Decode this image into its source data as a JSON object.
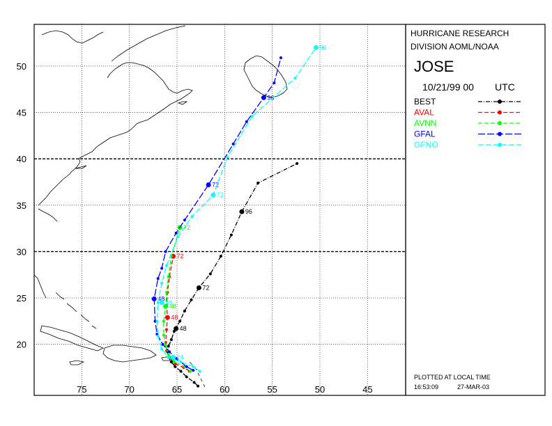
{
  "header": {
    "org_line1": "HURRICANE RESEARCH",
    "org_line2": "DIVISION AOML/NOAA",
    "storm_name": "JOSE",
    "datetime": "10/21/99 00",
    "timezone": "UTC"
  },
  "footer": {
    "note": "PLOTTED AT LOCAL TIME",
    "time": "16:53:09",
    "date": "27-MAR-03"
  },
  "chart_data": {
    "type": "line",
    "title": "JOSE",
    "xlabel": "",
    "ylabel": "",
    "xlim": [
      80,
      41
    ],
    "ylim": [
      14.5,
      54.5
    ],
    "x_ticks": [
      75,
      70,
      65,
      60,
      55,
      50,
      45
    ],
    "y_ticks": [
      20,
      25,
      30,
      35,
      40,
      45,
      50
    ],
    "grid": true,
    "legend_position": "right",
    "series": [
      {
        "name": "BEST",
        "color": "#000000",
        "dash": "6,2,1,2",
        "points": [
          [
            62.8,
            15.5
          ],
          [
            63.2,
            15.9
          ],
          [
            64.0,
            16.5
          ],
          [
            64.6,
            17.1
          ],
          [
            65.2,
            17.6
          ],
          [
            65.6,
            18.1
          ],
          [
            65.9,
            18.6
          ],
          [
            66.0,
            19.2
          ],
          [
            65.9,
            19.8
          ],
          [
            65.6,
            20.5
          ],
          [
            65.3,
            21.4
          ],
          [
            64.7,
            22.5
          ],
          [
            64.2,
            23.6
          ],
          [
            63.5,
            24.8
          ],
          [
            62.7,
            26.1
          ],
          [
            61.5,
            27.6
          ],
          [
            60.4,
            29.5
          ],
          [
            59.3,
            31.8
          ],
          [
            58.2,
            34.3
          ],
          [
            56.5,
            37.4
          ],
          [
            52.4,
            39.5
          ]
        ],
        "labels": [
          {
            "lon": 65.1,
            "lat": 21.7,
            "text": "48"
          },
          {
            "lon": 62.7,
            "lat": 26.1,
            "text": "72"
          },
          {
            "lon": 58.2,
            "lat": 34.3,
            "text": "96"
          }
        ]
      },
      {
        "name": "AVAL",
        "color": "#ff0000",
        "dash": "6,3",
        "points": [
          [
            63.7,
            17.1
          ],
          [
            64.3,
            17.5
          ],
          [
            65.2,
            17.9
          ],
          [
            65.8,
            18.6
          ],
          [
            66.1,
            19.3
          ],
          [
            66.2,
            20.2
          ],
          [
            66.1,
            21.6
          ],
          [
            66.0,
            22.9
          ],
          [
            66.1,
            24.2
          ],
          [
            66.0,
            25.6
          ],
          [
            65.8,
            27.3
          ],
          [
            65.4,
            29.5
          ]
        ],
        "labels": [
          {
            "lon": 66.0,
            "lat": 22.9,
            "text": "48"
          },
          {
            "lon": 65.4,
            "lat": 29.5,
            "text": "72"
          }
        ]
      },
      {
        "name": "AVNN",
        "color": "#00ff00",
        "dash": "6,3",
        "points": [
          [
            63.6,
            17.1
          ],
          [
            64.2,
            17.6
          ],
          [
            65.3,
            18.1
          ],
          [
            65.9,
            18.9
          ],
          [
            66.2,
            19.8
          ],
          [
            66.4,
            21.0
          ],
          [
            66.4,
            22.5
          ],
          [
            66.2,
            24.1
          ],
          [
            66.1,
            25.6
          ],
          [
            65.9,
            27.3
          ],
          [
            65.6,
            29.5
          ],
          [
            64.7,
            32.6
          ]
        ],
        "labels": [
          {
            "lon": 66.2,
            "lat": 24.1,
            "text": "48"
          },
          {
            "lon": 64.7,
            "lat": 32.6,
            "text": "72"
          }
        ]
      },
      {
        "name": "GFAL",
        "color": "#0000ff",
        "dash": "10,3",
        "points": [
          [
            63.3,
            17.2
          ],
          [
            64.0,
            17.6
          ],
          [
            65.0,
            18.4
          ],
          [
            65.8,
            19.2
          ],
          [
            66.5,
            20.0
          ],
          [
            67.1,
            21.1
          ],
          [
            67.3,
            22.5
          ],
          [
            67.4,
            24.9
          ],
          [
            67.0,
            27.1
          ],
          [
            66.6,
            28.2
          ],
          [
            66.2,
            30.0
          ],
          [
            65.1,
            32.0
          ],
          [
            64.2,
            33.4
          ],
          [
            61.7,
            37.2
          ],
          [
            59.1,
            41.6
          ],
          [
            57.7,
            44.0
          ],
          [
            55.9,
            46.6
          ],
          [
            54.8,
            48.2
          ],
          [
            54.1,
            50.9
          ]
        ],
        "labels": [
          {
            "lon": 67.4,
            "lat": 24.9,
            "text": "48"
          },
          {
            "lon": 61.7,
            "lat": 37.2,
            "text": "72"
          },
          {
            "lon": 55.9,
            "lat": 46.6,
            "text": "96"
          }
        ]
      },
      {
        "name": "GFNO",
        "color": "#00ffff",
        "dash": "8,3",
        "points": [
          [
            62.6,
            17.1
          ],
          [
            63.3,
            17.6
          ],
          [
            64.6,
            18.1
          ],
          [
            65.9,
            18.6
          ],
          [
            66.6,
            19.5
          ],
          [
            67.0,
            20.9
          ],
          [
            67.1,
            22.5
          ],
          [
            67.0,
            24.5
          ],
          [
            66.6,
            26.6
          ],
          [
            66.1,
            28.5
          ],
          [
            64.9,
            31.6
          ],
          [
            63.4,
            33.8
          ],
          [
            61.2,
            36.1
          ],
          [
            59.7,
            40.2
          ],
          [
            57.1,
            44.6
          ],
          [
            52.6,
            48.7
          ],
          [
            50.4,
            52.0
          ]
        ],
        "labels": [
          {
            "lon": 65.4,
            "lat": 18.6,
            "text": "24"
          },
          {
            "lon": 66.6,
            "lat": 24.5,
            "text": "48"
          },
          {
            "lon": 61.2,
            "lat": 36.1,
            "text": "72"
          },
          {
            "lon": 50.4,
            "lat": 52.0,
            "text": "96"
          }
        ]
      }
    ]
  }
}
